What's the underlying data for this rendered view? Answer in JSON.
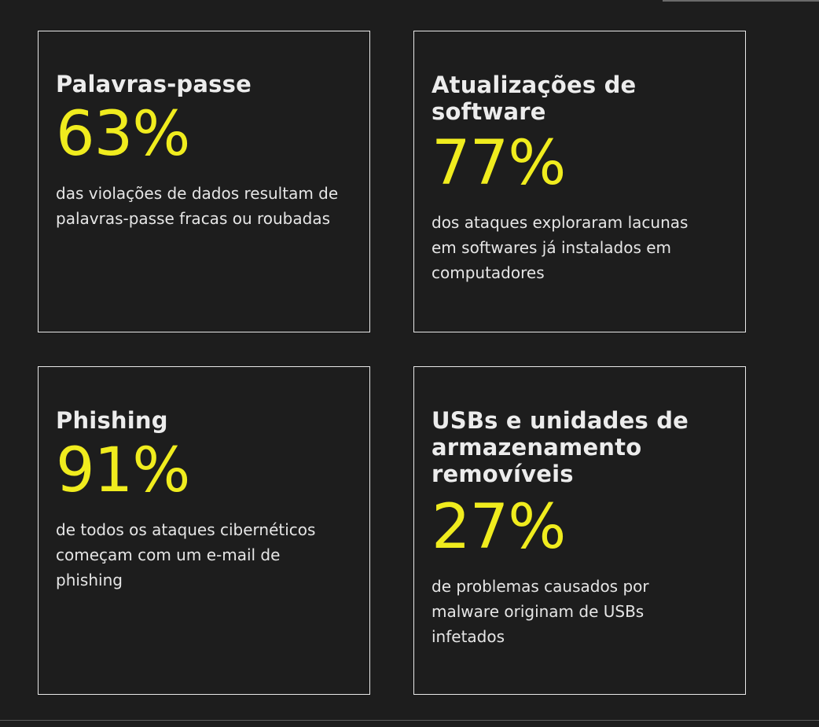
{
  "cards": [
    {
      "title": "Palavras-passe",
      "stat": "63%",
      "description": "das violações de dados resultam de palavras-passe fracas ou roubadas"
    },
    {
      "title": "Atualizações de software",
      "stat": "77%",
      "description": "dos ataques exploraram lacunas em softwares já instalados em computadores"
    },
    {
      "title": "Phishing",
      "stat": "91%",
      "description": "de todos os ataques cibernéticos começam com um e-mail de phishing"
    },
    {
      "title": "USBs e unidades de armazenamento removíveis",
      "stat": "27%",
      "description": "de problemas causados por malware originam de USBs infetados"
    }
  ],
  "colors": {
    "background": "#1d1d1d",
    "accent": "#f0ec1e",
    "text": "#ececec",
    "border": "#e8e8e8"
  }
}
